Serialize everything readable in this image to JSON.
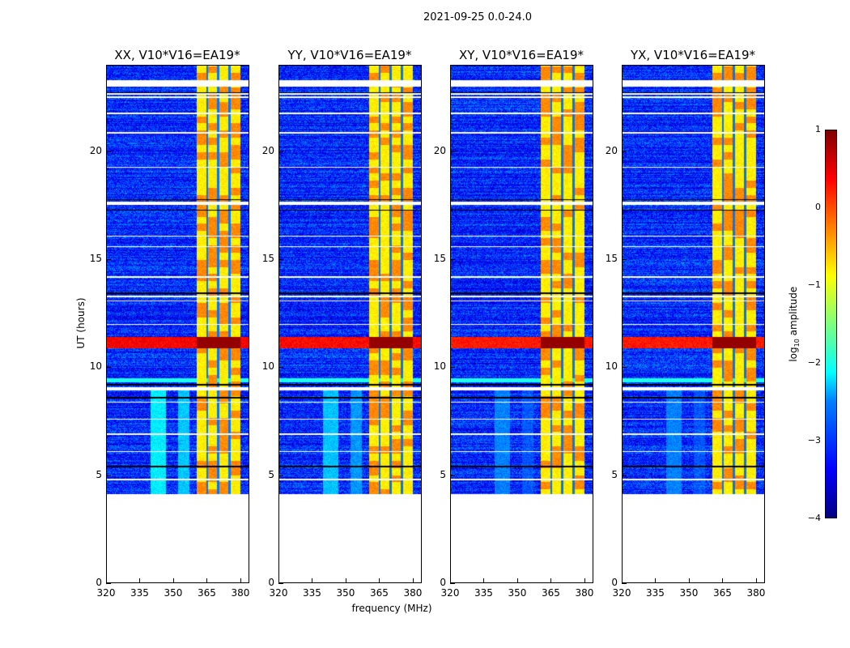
{
  "chart_data": {
    "type": "heatmap",
    "title": "2021-09-25 0.0-24.0",
    "xlabel": "frequency (MHz)",
    "ylabel": "UT (hours)",
    "xlim": [
      320,
      384
    ],
    "ylim": [
      0,
      24
    ],
    "xticks": [
      "320",
      "335",
      "350",
      "365",
      "380"
    ],
    "yticks": [
      "0",
      "5",
      "10",
      "15",
      "20"
    ],
    "panels": [
      {
        "title": "XX, V10*V16=EA19*",
        "strength": 1.0
      },
      {
        "title": "YY, V10*V16=EA19*",
        "strength": 0.9
      },
      {
        "title": "XY, V10*V16=EA19*",
        "strength": 0.75
      },
      {
        "title": "YX, V10*V16=EA19*",
        "strength": 0.75
      }
    ],
    "colorbar": {
      "label": "log10 amplitude",
      "label_main": "log",
      "label_sub": "10",
      "label_rest": " amplitude",
      "range": [
        -4,
        1
      ],
      "ticks": [
        "1",
        "0",
        "−1",
        "−2",
        "−3",
        "−4"
      ],
      "colormap": "jet"
    },
    "data_start_hours": 4.12,
    "background_log_amp": -3.2,
    "rfi_band_mhz": [
      360.5,
      380
    ],
    "rfi_log_amp": -0.8,
    "rfi_gaps_mhz": [
      365.2,
      370.2,
      375.3
    ],
    "high_amplitude_band_hours": [
      10.9,
      11.4
    ],
    "high_amplitude_log_amp": 0.6,
    "cyan_band_hours": [
      9.3,
      9.5
    ],
    "flagged_bands_hours": [
      [
        23.05,
        23.35
      ],
      [
        17.55,
        17.7
      ],
      [
        8.95,
        9.1
      ]
    ],
    "flagged_lines_hours": [
      22.7,
      22.55,
      21.8,
      20.9,
      19.3,
      16.1,
      15.6,
      14.2,
      13.3,
      13.1,
      12.0,
      8.4,
      7.6,
      6.9,
      6.1,
      4.8
    ],
    "dark_lines_hours": [
      22.75,
      17.8,
      17.3,
      13.45,
      9.2,
      8.6,
      5.4
    ],
    "emission_blobs": [
      {
        "freq_mhz": [
          339.5,
          346.5
        ],
        "hours": [
          4.12,
          9
        ],
        "log_amp": -2.2
      },
      {
        "freq_mhz": [
          352,
          357
        ],
        "hours": [
          4.12,
          9
        ],
        "log_amp": -2.4
      }
    ]
  }
}
